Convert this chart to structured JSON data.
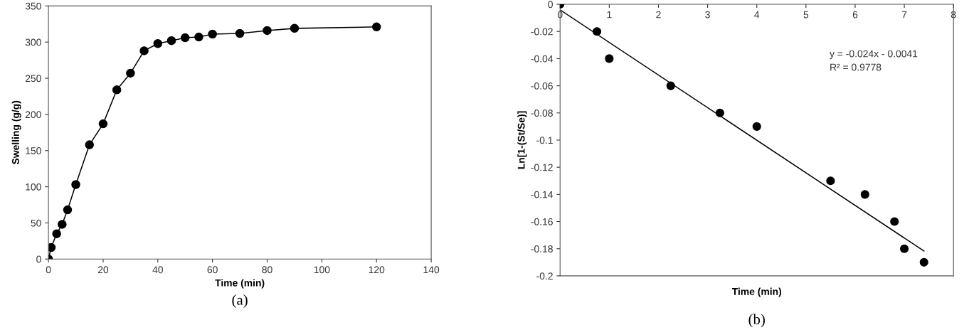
{
  "chart_data": [
    {
      "type": "line",
      "xlabel": "Time (min)",
      "ylabel": "Swelling (g/g)",
      "grid": false,
      "x": [
        0,
        1,
        3,
        5,
        7,
        10,
        15,
        20,
        25,
        30,
        35,
        40,
        45,
        50,
        55,
        60,
        70,
        80,
        90,
        120
      ],
      "series": [
        {
          "color": "#000000",
          "marker": "circle",
          "values": [
            0,
            16,
            35,
            48,
            68,
            103,
            158,
            187,
            234,
            257,
            288,
            298,
            302,
            306,
            307,
            311,
            312,
            316,
            319,
            321
          ]
        }
      ],
      "xlim": [
        0,
        140
      ],
      "xticks": [
        0,
        20,
        40,
        60,
        80,
        100,
        120,
        140
      ],
      "ylim": [
        0,
        350
      ],
      "yticks": [
        0,
        50,
        100,
        150,
        200,
        250,
        300,
        350
      ],
      "annotations": [
        "(a)"
      ]
    },
    {
      "type": "scatter",
      "xlabel": "Time (min)",
      "ylabel": "Ln[1-(St/Se)]",
      "grid": false,
      "series": [
        {
          "color": "#000000",
          "marker": "circle",
          "x": [
            0,
            0.75,
            1,
            2.25,
            3.25,
            4,
            5.5,
            6.2,
            6.8,
            7,
            7.4
          ],
          "values": [
            0,
            -0.02,
            -0.04,
            -0.06,
            -0.08,
            -0.09,
            -0.13,
            -0.14,
            -0.16,
            -0.18,
            -0.19
          ]
        },
        {
          "type": "line",
          "marker": "none",
          "color": "#000000",
          "x": [
            0,
            7.4
          ],
          "values": [
            -0.0041,
            -0.1817
          ]
        }
      ],
      "xlim": [
        0,
        8
      ],
      "xticks": [
        0,
        1,
        2,
        3,
        4,
        5,
        6,
        7,
        8
      ],
      "ylim": [
        -0.2,
        0
      ],
      "yticks": [
        -0.2,
        -0.18,
        -0.16,
        -0.14,
        -0.12,
        -0.1,
        -0.08,
        -0.06,
        -0.04,
        -0.02,
        0
      ],
      "annotations": [
        "y = -0.024x - 0.0041\nR² = 0.9778",
        "(b)"
      ]
    }
  ]
}
